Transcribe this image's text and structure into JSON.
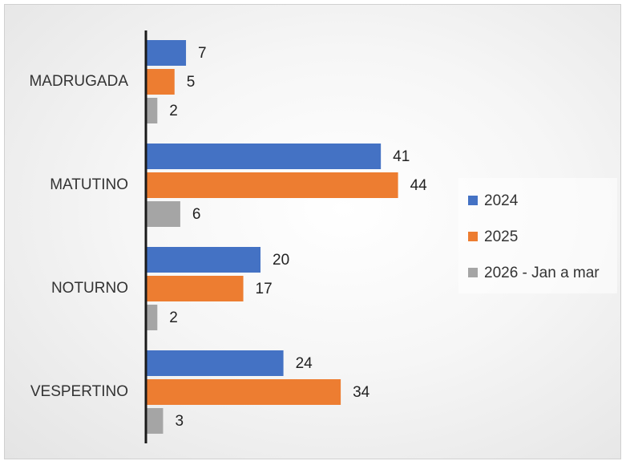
{
  "chart_data": {
    "type": "bar",
    "orientation": "horizontal",
    "categories": [
      "MADRUGADA",
      "MATUTINO",
      "NOTURNO",
      "VESPERTINO"
    ],
    "series": [
      {
        "name": "2024",
        "color": "#4472C4",
        "values": [
          7,
          41,
          20,
          24
        ]
      },
      {
        "name": "2025",
        "color": "#ED7D31",
        "values": [
          5,
          44,
          17,
          34
        ]
      },
      {
        "name": "2026 - Jan a mar",
        "color": "#A5A5A5",
        "values": [
          2,
          6,
          2,
          3
        ]
      }
    ],
    "title": "",
    "xlabel": "",
    "ylabel": "",
    "xlim": [
      0,
      50
    ],
    "grid": false,
    "data_labels": true,
    "legend_position": "right"
  }
}
